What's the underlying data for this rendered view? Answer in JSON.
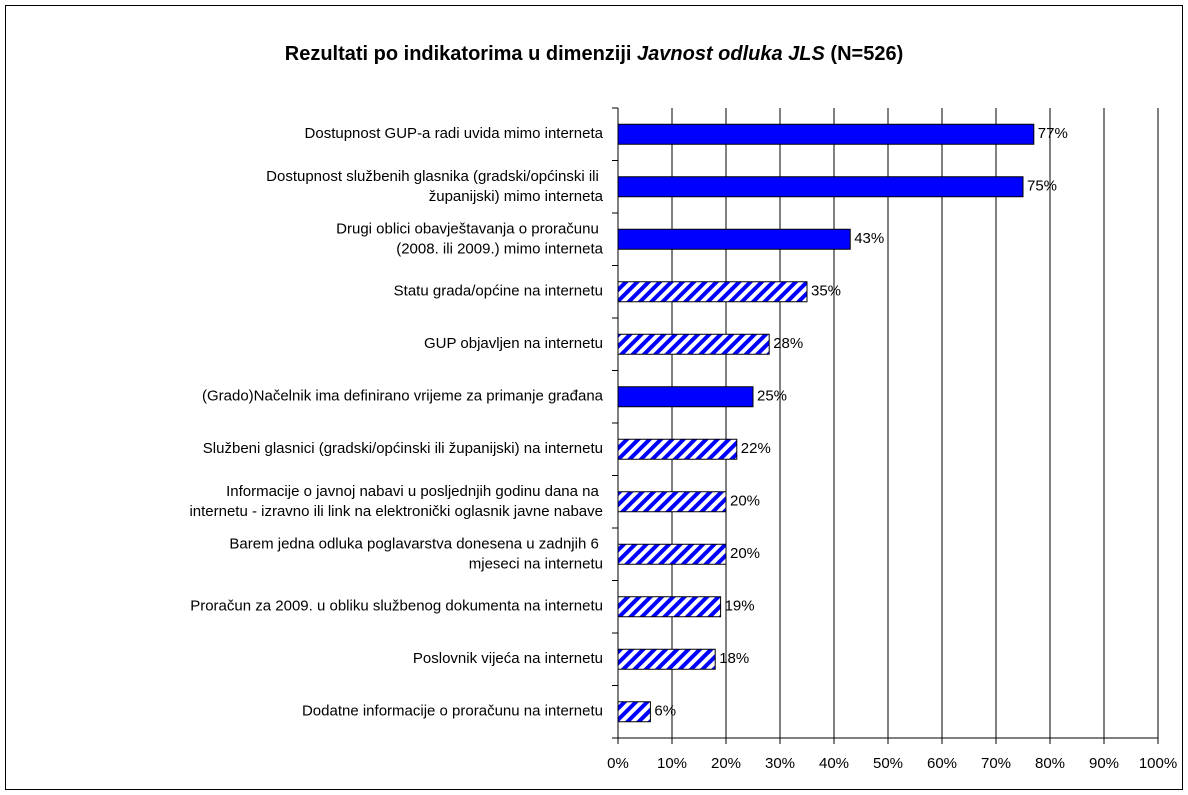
{
  "chart_data": {
    "type": "barh",
    "title": "Rezultati po indikatorima u dimenziji",
    "title_italic": "Javnost odluka JLS",
    "title_suffix": "(N=526)",
    "categories": [
      "Dostupnost GUP-a radi uvida mimo interneta",
      "Dostupnost službenih glasnika (gradski/općinski ili\nžupanijski) mimo interneta",
      "Drugi oblici obavještavanja o proračunu\n(2008. ili 2009.) mimo interneta",
      "Statu grada/općine na internetu",
      "GUP objavljen na internetu",
      "(Grado)Načelnik ima definirano vrijeme za primanje građana",
      "Službeni glasnici (gradski/općinski ili županijski) na internetu",
      "Informacije o javnoj nabavi u posljednjih godinu dana na\ninternetu - izravno ili link na elektronički oglasnik javne nabave",
      "Barem jedna odluka poglavarstva donesena u zadnjih 6\nmjeseci na internetu",
      "Proračun za 2009. u obliku službenog dokumenta na internetu",
      "Poslovnik vijeća na internetu",
      "Dodatne informacije o proračunu na internetu"
    ],
    "values": [
      77,
      75,
      43,
      35,
      28,
      25,
      22,
      20,
      20,
      19,
      18,
      6
    ],
    "value_labels": [
      "77%",
      "75%",
      "43%",
      "35%",
      "28%",
      "25%",
      "22%",
      "20%",
      "20%",
      "19%",
      "18%",
      "6%"
    ],
    "fill_patterns": [
      "solid",
      "solid",
      "solid",
      "hatched",
      "hatched",
      "solid",
      "hatched",
      "hatched",
      "hatched",
      "hatched",
      "hatched",
      "hatched"
    ],
    "color": "#0000ff",
    "xlim": [
      0,
      100
    ],
    "xticks": [
      {
        "value": 0,
        "label": "0%"
      },
      {
        "value": 10,
        "label": "10%"
      },
      {
        "value": 20,
        "label": "20%"
      },
      {
        "value": 30,
        "label": "30%"
      },
      {
        "value": 40,
        "label": "40%"
      },
      {
        "value": 50,
        "label": "50%"
      },
      {
        "value": 60,
        "label": "60%"
      },
      {
        "value": 70,
        "label": "70%"
      },
      {
        "value": 80,
        "label": "80%"
      },
      {
        "value": 90,
        "label": "90%"
      },
      {
        "value": 100,
        "label": "100%"
      }
    ],
    "grid": true
  }
}
